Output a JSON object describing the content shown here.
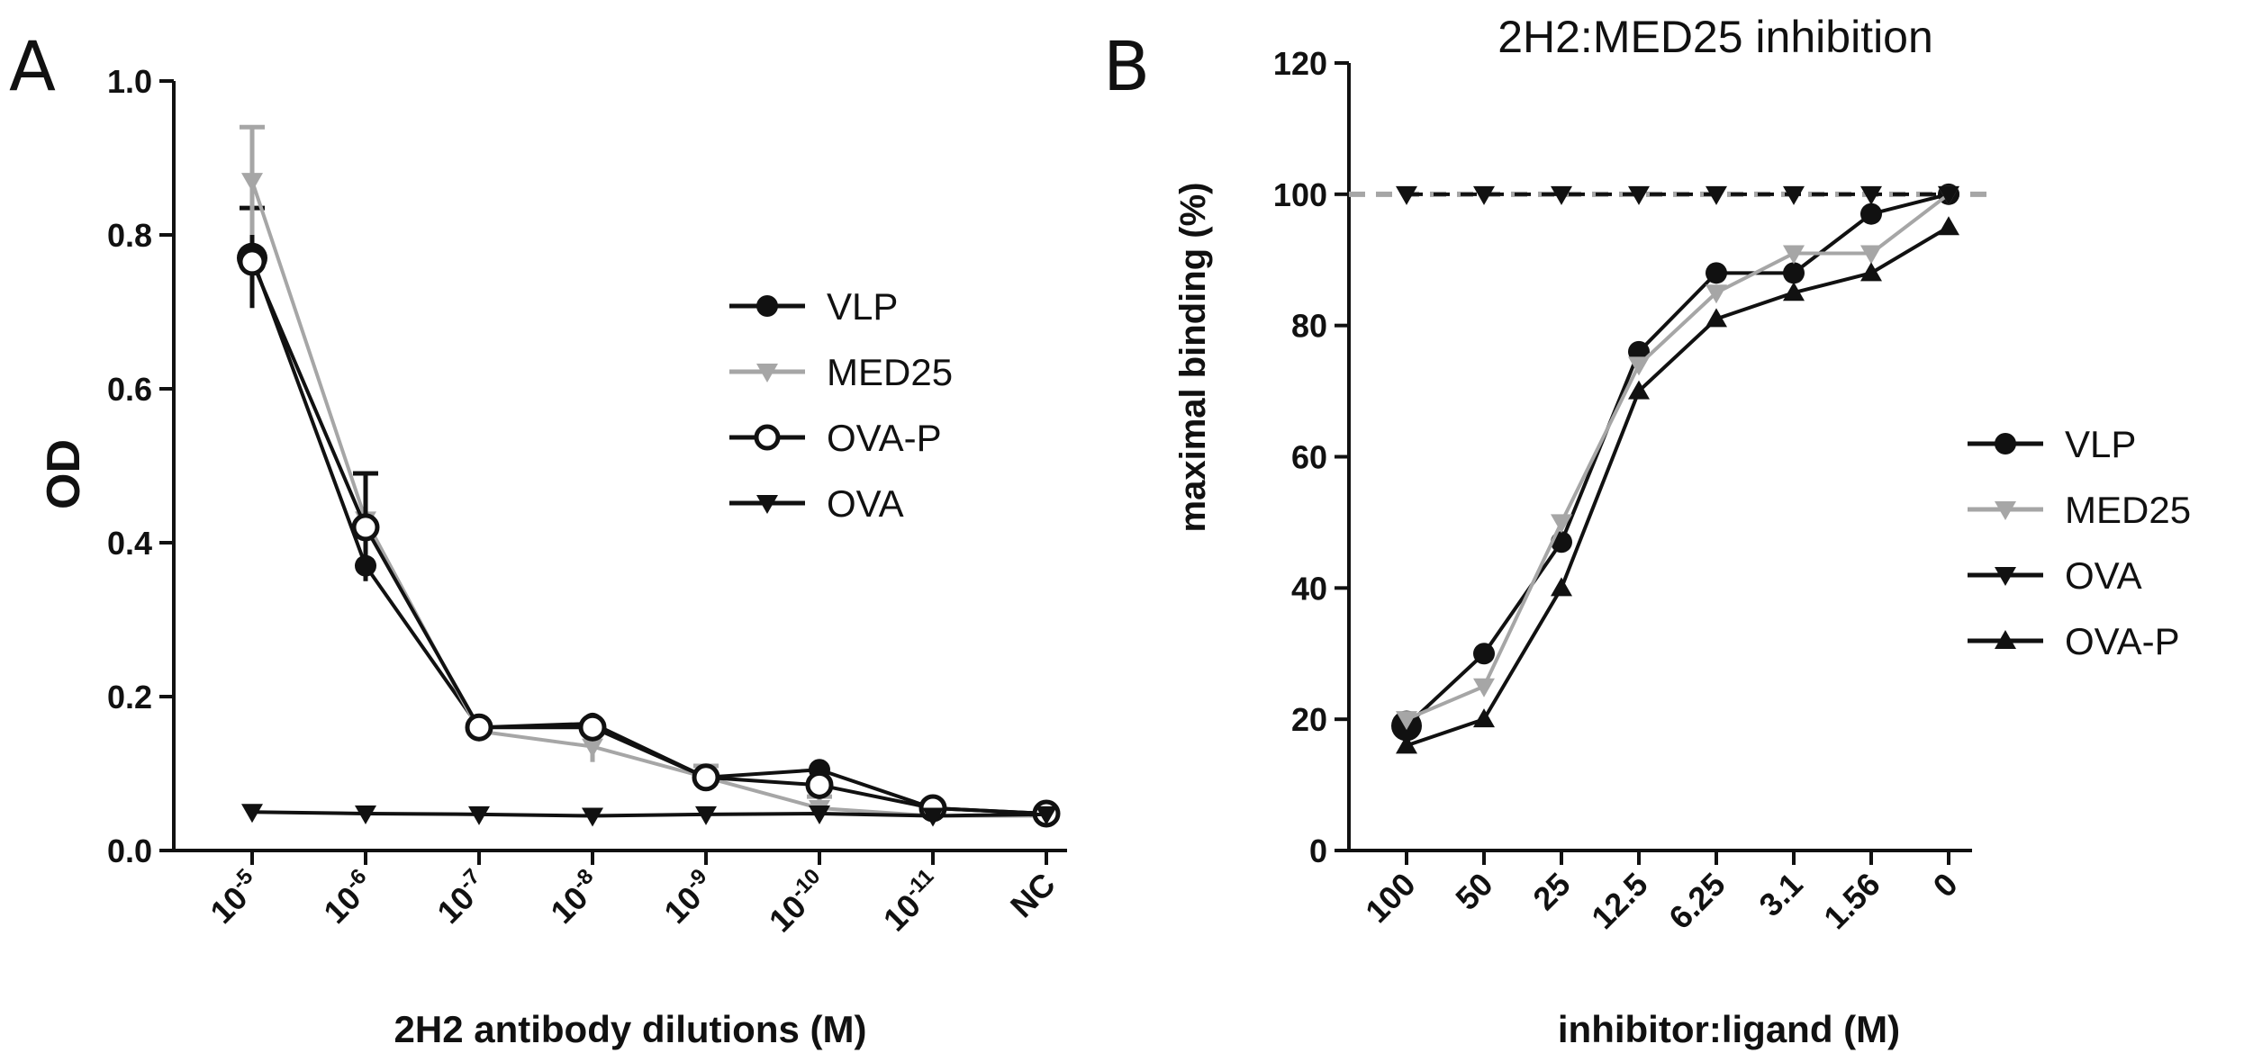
{
  "panels": {
    "a": {
      "letter": "A"
    },
    "b": {
      "letter": "B"
    }
  },
  "colors": {
    "black": "#111111",
    "gray": "#a6a6a6"
  },
  "chart_data": [
    {
      "id": "A",
      "type": "line",
      "title": "",
      "xlabel": "2H2 antibody dilutions (M)",
      "ylabel": "OD",
      "ylim": [
        0,
        1.0
      ],
      "yticks": [
        0.0,
        0.2,
        0.4,
        0.6,
        0.8,
        1.0
      ],
      "ytick_labels": [
        "0.0",
        "0.2",
        "0.4",
        "0.6",
        "0.8",
        "1.0"
      ],
      "categories": [
        {
          "base": "10",
          "exp": "-5"
        },
        {
          "base": "10",
          "exp": "-6"
        },
        {
          "base": "10",
          "exp": "-7"
        },
        {
          "base": "10",
          "exp": "-8"
        },
        {
          "base": "10",
          "exp": "-9"
        },
        {
          "base": "10",
          "exp": "-10"
        },
        {
          "base": "10",
          "exp": "-11"
        },
        {
          "base": "NC",
          "exp": ""
        }
      ],
      "legend_position": "right-middle",
      "series": [
        {
          "name": "VLP",
          "marker": "circle",
          "color": "#111111",
          "values": [
            0.77,
            0.37,
            0.16,
            0.165,
            0.095,
            0.105,
            0.055,
            0.048
          ],
          "errors": [
            0.065,
            0.0,
            0.0,
            0.0,
            0.0,
            0.0,
            0.0,
            0.0
          ]
        },
        {
          "name": "MED25",
          "marker": "triangle-down",
          "color": "#a6a6a6",
          "values": [
            0.87,
            0.43,
            0.155,
            0.135,
            0.095,
            0.055,
            0.045,
            0.045
          ],
          "errors": [
            0.07,
            0.0,
            0.0,
            0.02,
            0.015,
            0.015,
            0.0,
            0.0
          ]
        },
        {
          "name": "OVA-P",
          "marker": "circle-open",
          "color": "#111111",
          "values": [
            0.765,
            0.42,
            0.16,
            0.16,
            0.095,
            0.085,
            0.055,
            0.048
          ],
          "errors": [
            0.0,
            0.07,
            0.0,
            0.0,
            0.0,
            0.0,
            0.0,
            0.0
          ]
        },
        {
          "name": "OVA",
          "marker": "triangle-down",
          "color": "#111111",
          "values": [
            0.05,
            0.048,
            0.047,
            0.045,
            0.047,
            0.048,
            0.045,
            0.047
          ],
          "errors": [
            0,
            0,
            0,
            0,
            0,
            0,
            0,
            0
          ]
        }
      ]
    },
    {
      "id": "B",
      "type": "line",
      "title": "2H2:MED25 inhibition",
      "xlabel": "inhibitor:ligand (M)",
      "ylabel": "maximal binding (%)",
      "ylim": [
        0,
        120
      ],
      "yticks": [
        0,
        20,
        40,
        60,
        80,
        100,
        120
      ],
      "ytick_labels": [
        "0",
        "20",
        "40",
        "60",
        "80",
        "100",
        "120"
      ],
      "categories": [
        "100",
        "50",
        "25",
        "12.5",
        "6.25",
        "3.1",
        "1.56",
        "0"
      ],
      "reference_line": {
        "value": 100,
        "style": "dashed",
        "color": "#a6a6a6"
      },
      "legend_position": "right-middle",
      "series": [
        {
          "name": "VLP",
          "marker": "circle",
          "color": "#111111",
          "values": [
            19,
            30,
            47,
            76,
            88,
            88,
            97,
            100
          ]
        },
        {
          "name": "MED25",
          "marker": "triangle-down",
          "color": "#a6a6a6",
          "values": [
            20,
            25,
            50,
            74,
            85,
            91,
            91,
            100
          ]
        },
        {
          "name": "OVA",
          "marker": "triangle-down",
          "color": "#111111",
          "values": [
            100,
            100,
            100,
            100,
            100,
            100,
            100,
            100
          ]
        },
        {
          "name": "OVA-P",
          "marker": "triangle-up",
          "color": "#111111",
          "values": [
            16,
            20,
            40,
            70,
            81,
            85,
            88,
            95
          ]
        }
      ]
    }
  ]
}
